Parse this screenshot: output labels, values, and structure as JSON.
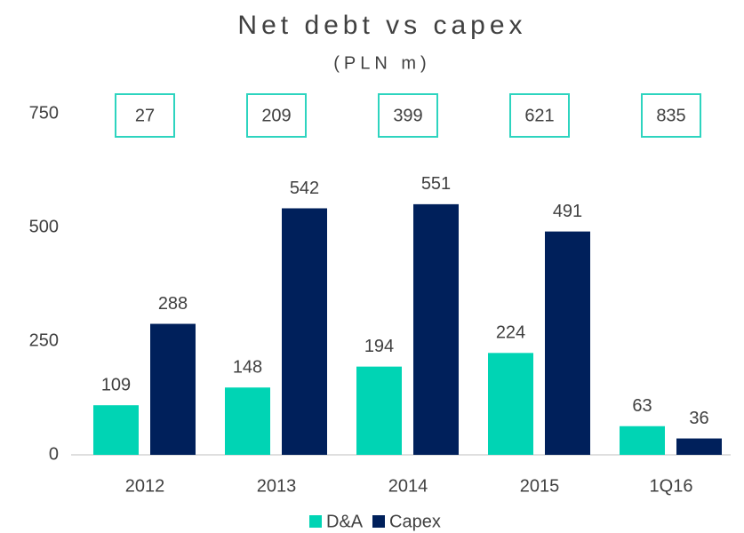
{
  "chart_data": {
    "type": "bar",
    "title": "Net debt vs capex",
    "subtitle": "(PLN m)",
    "categories": [
      "2012",
      "2013",
      "2014",
      "2015",
      "1Q16"
    ],
    "annotations": [
      27,
      209,
      399,
      621,
      835
    ],
    "annotation_color": "#2dd4bf",
    "series": [
      {
        "name": "D&A",
        "color": "#00d4b4",
        "values": [
          109,
          148,
          194,
          224,
          63
        ]
      },
      {
        "name": "Capex",
        "color": "#00205b",
        "values": [
          288,
          542,
          551,
          491,
          36
        ]
      }
    ],
    "ylim": [
      0,
      750
    ],
    "yticks": [
      0,
      250,
      500,
      750
    ],
    "grid": false,
    "legend": "bottom"
  }
}
